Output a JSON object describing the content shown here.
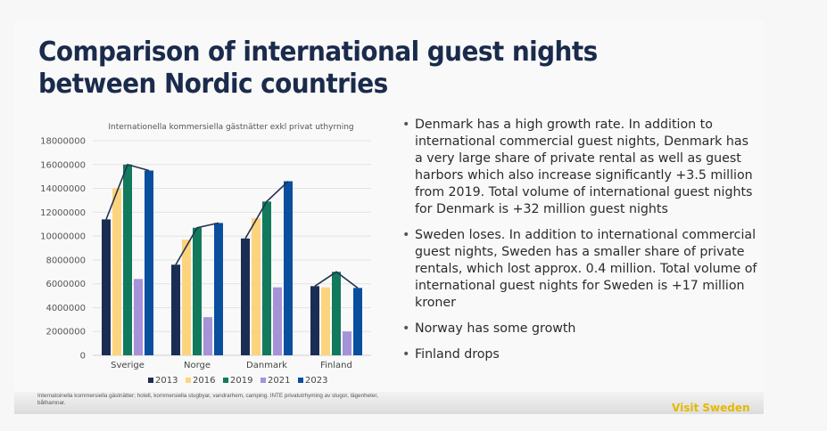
{
  "slide": {
    "title": "Comparison of international guest nights between Nordic countries",
    "bullets": [
      "Denmark has a high growth rate. In addition to international commercial guest nights, Denmark has a very large share of private rental as well as guest harbors which also increase significantly +3.5 million from 2019. Total volume of international guest nights for Denmark is +32 million guest nights",
      "Sweden loses. In addition to international commercial guest nights, Sweden has a smaller share of private rentals, which lost approx. 0.4 million.  Total volume of international guest nights for Sweden is +17 million kroner",
      "Norway has some growth",
      "Finland drops"
    ],
    "footnote": "Internatoinella kommersiella gästnätter; hotell, kommersiella stugbyar, vandrarhem, camping. INTE privatutrhyming av stugor, lägenheter, båthamnar.",
    "brand": "Visit Sweden"
  },
  "chart_data": {
    "type": "bar",
    "title": "Internationella kommersiella gästnätter exkl privat uthyrning",
    "xlabel": "",
    "ylabel": "",
    "categories": [
      "Sverige",
      "Norge",
      "Danmark",
      "Finland"
    ],
    "ylim": [
      0,
      18000000
    ],
    "yticks": [
      0,
      2000000,
      4000000,
      6000000,
      8000000,
      10000000,
      12000000,
      14000000,
      16000000,
      18000000
    ],
    "grid": true,
    "legend_position": "bottom",
    "series": [
      {
        "name": "2013",
        "color": "#1b2d52",
        "values": [
          11400000,
          7600000,
          9800000,
          5800000
        ]
      },
      {
        "name": "2016",
        "color": "#fdd47e",
        "values": [
          14000000,
          9700000,
          11500000,
          5700000
        ]
      },
      {
        "name": "2019",
        "color": "#117a5c",
        "values": [
          16000000,
          10700000,
          12900000,
          7000000
        ]
      },
      {
        "name": "2021",
        "color": "#a592d8",
        "values": [
          6400000,
          3200000,
          5700000,
          2000000
        ]
      },
      {
        "name": "2023",
        "color": "#0a4e9e",
        "values": [
          15500000,
          11100000,
          14600000,
          5650000
        ]
      }
    ],
    "trend_line": {
      "color": "#23324f",
      "connects_series": [
        "2013",
        "2019",
        "2023"
      ]
    }
  }
}
